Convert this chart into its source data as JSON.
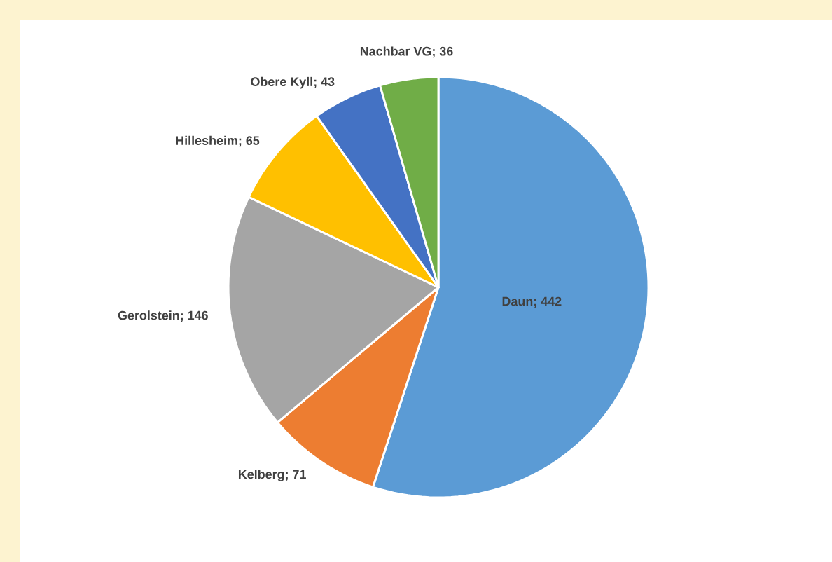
{
  "chart_data": {
    "type": "pie",
    "categories": [
      "Daun",
      "Kelberg",
      "Gerolstein",
      "Hillesheim",
      "Obere Kyll",
      "Nachbar VG"
    ],
    "values": [
      442,
      71,
      146,
      65,
      43,
      36
    ],
    "colors": [
      "#5b9bd5",
      "#ed7d31",
      "#a5a5a5",
      "#ffc000",
      "#4472c4",
      "#70ad47"
    ],
    "value_labels": [
      "; 442",
      "; 71",
      "; 146",
      "; 65",
      "; 43",
      "; 36"
    ]
  }
}
